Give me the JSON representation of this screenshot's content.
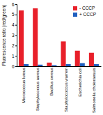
{
  "chart_data": {
    "type": "bar",
    "y_label": "Fluorescence ratio (red/green)",
    "categories": [
      "Micrococcus luteus",
      "Staphylococcus aureus",
      "Bacillus cereus",
      "Staphylococcus warneri",
      "Escherichia coli",
      "Salmonella choleraesuis"
    ],
    "series": [
      {
        "name": "- CCCP",
        "color": "#e8202a",
        "values": [
          5.4,
          5.6,
          0.35,
          2.4,
          1.5,
          1.3
        ]
      },
      {
        "name": "+ CCCP",
        "color": "#1f5fbf",
        "values": [
          0.2,
          0.15,
          0.1,
          0.2,
          0.3,
          0.2
        ]
      }
    ],
    "ylim": [
      0,
      6
    ],
    "yticks": [
      0,
      1,
      2,
      3,
      4,
      5,
      6
    ],
    "legend": "upper right",
    "grid": false
  }
}
